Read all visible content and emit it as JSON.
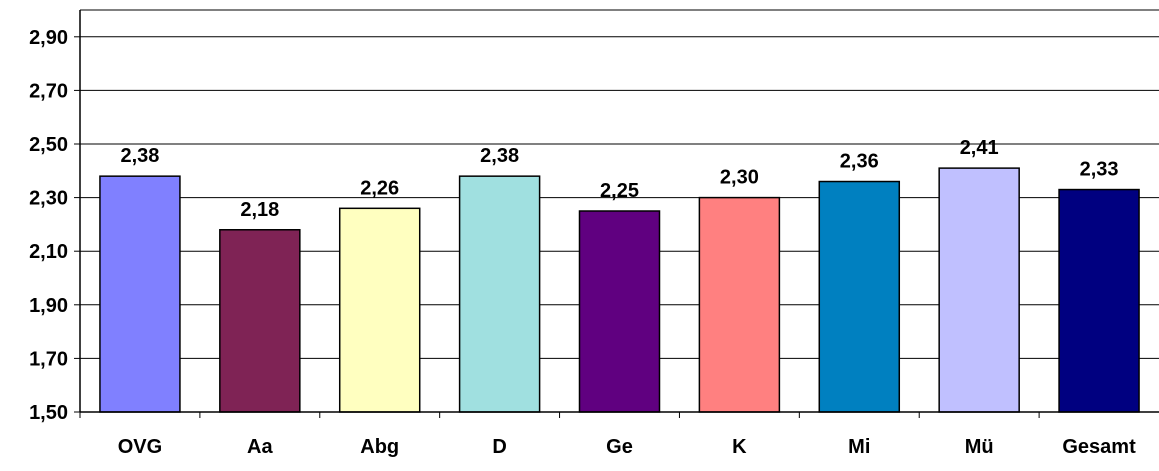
{
  "chart_data": {
    "type": "bar",
    "title": "",
    "xlabel": "",
    "ylabel": "",
    "categories": [
      "OVG",
      "Aa",
      "Abg",
      "D",
      "Ge",
      "K",
      "Mi",
      "Mü",
      "Gesamt"
    ],
    "values": [
      2.38,
      2.18,
      2.26,
      2.38,
      2.25,
      2.3,
      2.36,
      2.41,
      2.33
    ],
    "value_labels": [
      "2,38",
      "2,18",
      "2,26",
      "2,38",
      "2,25",
      "2,30",
      "2,36",
      "2,41",
      "2,33"
    ],
    "bar_colors": [
      "#8080FF",
      "#7F2355",
      "#FFFFC0",
      "#A0E0E0",
      "#600080",
      "#FF8080",
      "#0080C0",
      "#C0C0FF",
      "#000080"
    ],
    "ylim": [
      1.5,
      3.0
    ],
    "yticks": [
      1.5,
      1.7,
      1.9,
      2.1,
      2.3,
      2.5,
      2.7,
      2.9
    ],
    "ytick_labels": [
      "1,50",
      "1,70",
      "1,90",
      "2,10",
      "2,30",
      "2,50",
      "2,70",
      "2,90"
    ],
    "grid": true,
    "legend": "none"
  }
}
